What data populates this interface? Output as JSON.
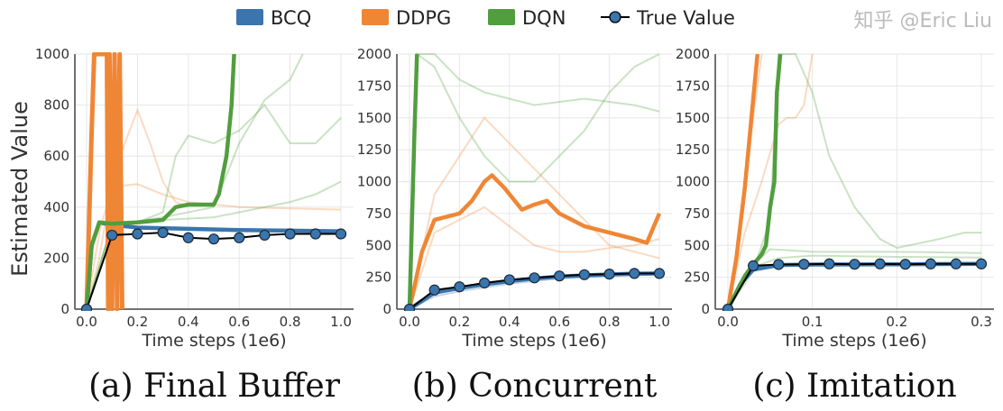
{
  "legend": {
    "items": [
      {
        "name": "BCQ",
        "color": "#3a75ad",
        "marker": "patch"
      },
      {
        "name": "DDPG",
        "color": "#ef8636",
        "marker": "patch"
      },
      {
        "name": "DQN",
        "color": "#519e3e",
        "marker": "patch"
      },
      {
        "name": "True Value",
        "color": "#000000",
        "marker": "line-dot"
      }
    ],
    "placement": "top-center"
  },
  "watermark": "知乎 @Eric Liu",
  "chart_data": [
    {
      "type": "line",
      "caption": "(a) Final Buffer",
      "xlabel": "Time steps (1e6)",
      "ylabel": "Estimated Value",
      "xlim": [
        0,
        1.0
      ],
      "ylim": [
        0,
        1000
      ],
      "xticks": [
        "0.0",
        "0.2",
        "0.4",
        "0.6",
        "0.8",
        "1.0"
      ],
      "yticks": [
        "0",
        "200",
        "400",
        "600",
        "800",
        "1000"
      ],
      "grid": true,
      "series": [
        {
          "name": "BCQ",
          "x": [
            0,
            0.02,
            0.05,
            0.1,
            0.2,
            0.4,
            0.6,
            0.8,
            1.0
          ],
          "y": [
            0,
            250,
            340,
            330,
            320,
            315,
            310,
            308,
            305
          ]
        },
        {
          "name": "DDPG",
          "x": [
            0,
            0.02,
            0.03,
            0.04,
            0.08,
            0.085,
            0.09,
            0.1,
            0.11,
            0.12,
            0.13,
            0.14
          ],
          "y": [
            0,
            700,
            1000,
            1000,
            1000,
            0,
            1000,
            0,
            1000,
            0,
            1000,
            0
          ]
        },
        {
          "name": "DQN",
          "x": [
            0,
            0.02,
            0.05,
            0.1,
            0.2,
            0.3,
            0.35,
            0.4,
            0.5,
            0.52,
            0.55,
            0.57,
            0.58
          ],
          "y": [
            0,
            250,
            340,
            335,
            340,
            350,
            400,
            410,
            410,
            450,
            600,
            800,
            1000
          ]
        },
        {
          "name": "True Value",
          "x": [
            0,
            0.1,
            0.2,
            0.3,
            0.4,
            0.5,
            0.6,
            0.7,
            0.8,
            0.9,
            1.0
          ],
          "y": [
            0,
            290,
            295,
            300,
            280,
            275,
            280,
            290,
            295,
            295,
            295
          ]
        }
      ],
      "faint_series": [
        {
          "series": "DDPG",
          "x": [
            0,
            0.05,
            0.1,
            0.2,
            0.3,
            0.4,
            0.6,
            0.8,
            1.0
          ],
          "y": [
            0,
            300,
            480,
            490,
            450,
            420,
            400,
            395,
            390
          ]
        },
        {
          "series": "DDPG",
          "x": [
            0,
            0.05,
            0.1,
            0.15,
            0.2,
            0.25,
            0.3,
            0.35,
            0.4
          ],
          "y": [
            0,
            200,
            500,
            650,
            780,
            650,
            500,
            420,
            400
          ]
        },
        {
          "series": "DQN",
          "x": [
            0,
            0.1,
            0.2,
            0.3,
            0.35,
            0.4,
            0.5,
            0.6,
            0.7,
            0.8,
            0.9,
            1.0
          ],
          "y": [
            0,
            330,
            340,
            380,
            600,
            680,
            650,
            700,
            800,
            650,
            650,
            750
          ]
        },
        {
          "series": "DQN",
          "x": [
            0,
            0.1,
            0.3,
            0.5,
            0.6,
            0.7,
            0.8,
            0.9,
            1.0
          ],
          "y": [
            0,
            330,
            350,
            360,
            380,
            400,
            420,
            450,
            500
          ]
        },
        {
          "series": "DQN",
          "x": [
            0,
            0.1,
            0.3,
            0.5,
            0.6,
            0.7,
            0.8,
            0.85
          ],
          "y": [
            0,
            330,
            360,
            400,
            650,
            820,
            900,
            1000
          ]
        }
      ]
    },
    {
      "type": "line",
      "caption": "(b) Concurrent",
      "xlabel": "Time steps (1e6)",
      "xlim": [
        0,
        1.0
      ],
      "ylim": [
        0,
        2000
      ],
      "xticks": [
        "0.0",
        "0.2",
        "0.4",
        "0.6",
        "0.8",
        "1.0"
      ],
      "yticks": [
        "0",
        "250",
        "500",
        "750",
        "1000",
        "1250",
        "1500",
        "1750",
        "2000"
      ],
      "grid": true,
      "series": [
        {
          "name": "BCQ",
          "x": [
            0,
            0.1,
            0.2,
            0.3,
            0.4,
            0.5,
            0.6,
            0.7,
            0.8,
            0.9,
            1.0
          ],
          "y": [
            0,
            130,
            165,
            195,
            220,
            240,
            255,
            265,
            272,
            278,
            280
          ]
        },
        {
          "name": "DDPG",
          "x": [
            0,
            0.05,
            0.1,
            0.2,
            0.25,
            0.3,
            0.33,
            0.38,
            0.45,
            0.5,
            0.55,
            0.6,
            0.7,
            0.8,
            0.9,
            0.95,
            1.0
          ],
          "y": [
            0,
            450,
            700,
            750,
            850,
            1000,
            1050,
            950,
            780,
            820,
            850,
            750,
            650,
            600,
            550,
            520,
            750
          ]
        },
        {
          "name": "DQN",
          "x": [
            0,
            0.01,
            0.02,
            0.03
          ],
          "y": [
            0,
            700,
            1400,
            2000
          ]
        },
        {
          "name": "True Value",
          "x": [
            0,
            0.1,
            0.2,
            0.3,
            0.4,
            0.5,
            0.6,
            0.7,
            0.8,
            0.9,
            1.0
          ],
          "y": [
            0,
            150,
            175,
            205,
            230,
            245,
            260,
            270,
            275,
            280,
            280
          ]
        }
      ],
      "faint_series": [
        {
          "series": "DQN",
          "x": [
            0,
            0.03,
            0.1,
            0.2,
            0.3,
            0.4,
            0.5,
            0.6,
            0.7,
            0.8,
            0.9,
            1.0
          ],
          "y": [
            0,
            2000,
            1900,
            1500,
            1200,
            1000,
            1000,
            1200,
            1400,
            1700,
            1900,
            2000
          ]
        },
        {
          "series": "DQN",
          "x": [
            0,
            0.03,
            0.1,
            0.2,
            0.3,
            0.5,
            0.7,
            0.9,
            1.0
          ],
          "y": [
            0,
            2000,
            2000,
            1800,
            1700,
            1600,
            1650,
            1600,
            1550
          ]
        },
        {
          "series": "DDPG",
          "x": [
            0,
            0.1,
            0.2,
            0.3,
            0.4,
            0.5,
            0.6,
            0.7,
            0.8,
            0.9,
            1.0
          ],
          "y": [
            0,
            900,
            1200,
            1500,
            1300,
            1100,
            900,
            700,
            500,
            450,
            400
          ]
        },
        {
          "series": "DDPG",
          "x": [
            0,
            0.1,
            0.2,
            0.3,
            0.4,
            0.5,
            0.6,
            0.7,
            0.8,
            0.9,
            1.0
          ],
          "y": [
            0,
            600,
            700,
            800,
            650,
            500,
            450,
            450,
            480,
            500,
            550
          ]
        },
        {
          "series": "BCQ",
          "x": [
            0,
            0.1,
            0.2,
            0.4,
            0.6,
            0.8,
            1.0
          ],
          "y": [
            0,
            100,
            140,
            200,
            240,
            260,
            270
          ]
        }
      ]
    },
    {
      "type": "line",
      "caption": "(c) Imitation",
      "xlabel": "Time steps (1e6)",
      "xlim": [
        0,
        0.3
      ],
      "ylim": [
        0,
        2000
      ],
      "xticks": [
        "0.0",
        "0.1",
        "0.2",
        "0.3"
      ],
      "yticks": [
        "0",
        "250",
        "500",
        "750",
        "1000",
        "1250",
        "1500",
        "1750",
        "2000"
      ],
      "grid": true,
      "series": [
        {
          "name": "BCQ",
          "x": [
            0,
            0.015,
            0.03,
            0.06,
            0.1,
            0.2,
            0.3
          ],
          "y": [
            0,
            200,
            310,
            345,
            350,
            352,
            355
          ]
        },
        {
          "name": "DDPG",
          "x": [
            0,
            0.01,
            0.02,
            0.03,
            0.035
          ],
          "y": [
            0,
            400,
            950,
            1650,
            2000
          ]
        },
        {
          "name": "DQN",
          "x": [
            0,
            0.02,
            0.03,
            0.04,
            0.045,
            0.05,
            0.055,
            0.058,
            0.062
          ],
          "y": [
            0,
            260,
            350,
            430,
            500,
            800,
            1000,
            1700,
            2000
          ]
        },
        {
          "name": "True Value",
          "x": [
            0,
            0.03,
            0.06,
            0.09,
            0.12,
            0.15,
            0.18,
            0.21,
            0.24,
            0.27,
            0.3
          ],
          "y": [
            0,
            340,
            350,
            352,
            355,
            352,
            355,
            352,
            355,
            355,
            355
          ]
        }
      ],
      "faint_series": [
        {
          "series": "DQN",
          "x": [
            0,
            0.03,
            0.05,
            0.06,
            0.08,
            0.1,
            0.12,
            0.15,
            0.18,
            0.2,
            0.25,
            0.28,
            0.3
          ],
          "y": [
            0,
            300,
            700,
            2000,
            2000,
            1700,
            1200,
            800,
            550,
            480,
            550,
            600,
            600
          ]
        },
        {
          "series": "DQN",
          "x": [
            0,
            0.03,
            0.05,
            0.1,
            0.2,
            0.3
          ],
          "y": [
            0,
            350,
            470,
            450,
            450,
            440
          ]
        },
        {
          "series": "DQN",
          "x": [
            0,
            0.03,
            0.06,
            0.1,
            0.2,
            0.3
          ],
          "y": [
            0,
            330,
            400,
            420,
            410,
            405
          ]
        },
        {
          "series": "DDPG",
          "x": [
            0,
            0.02,
            0.04,
            0.06,
            0.07,
            0.08,
            0.09,
            0.1
          ],
          "y": [
            0,
            600,
            1000,
            1450,
            1500,
            1500,
            1600,
            2000
          ]
        },
        {
          "series": "DDPG",
          "x": [
            0,
            0.02,
            0.03,
            0.04
          ],
          "y": [
            0,
            900,
            1500,
            2000
          ]
        }
      ]
    }
  ]
}
